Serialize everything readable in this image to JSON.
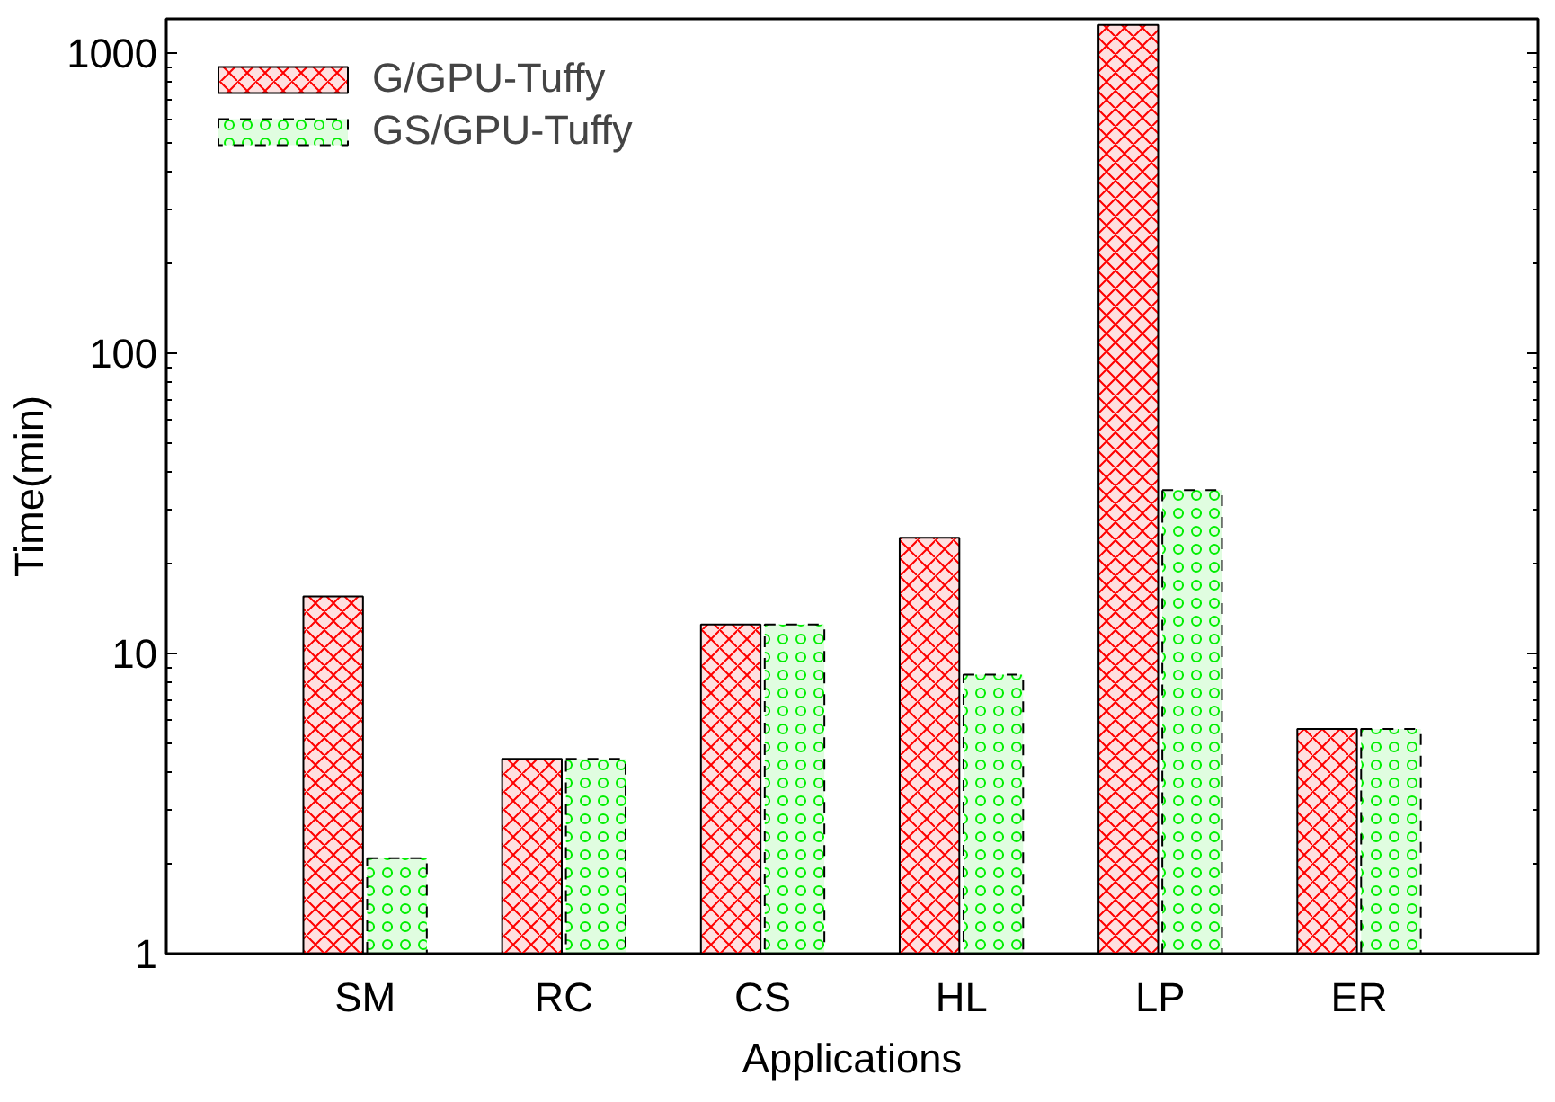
{
  "chart_data": {
    "type": "bar",
    "xlabel": "Applications",
    "ylabel": "Time(min)",
    "categories": [
      "SM",
      "RC",
      "CS",
      "HL",
      "LP",
      "ER"
    ],
    "series": [
      {
        "name": "G/GPU-Tuffy",
        "color": "#ff0000",
        "values": [
          15.5,
          4.46,
          12.5,
          24.3,
          1240,
          5.6
        ]
      },
      {
        "name": "GS/GPU-Tuffy",
        "color": "#00ee00",
        "values": [
          2.08,
          4.46,
          12.5,
          8.5,
          35,
          5.6
        ]
      }
    ],
    "log": true,
    "ylim": [
      1,
      1300
    ],
    "yticks": [
      1,
      10,
      100,
      1000
    ],
    "grid": false,
    "legend": "top left"
  }
}
